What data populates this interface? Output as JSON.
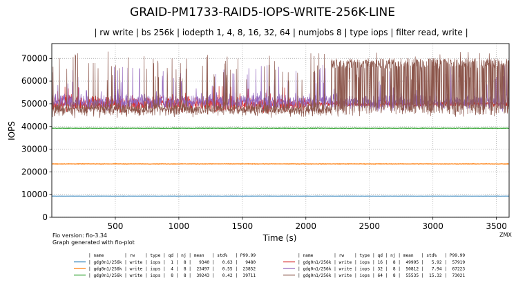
{
  "chart_data": {
    "type": "line",
    "title": "GRAID-PM1733-RAID5-IOPS-WRITE-256K-LINE",
    "subtitle": "| rw write | bs 256k | iodepth 1, 4, 8, 16, 32, 64 | numjobs 8 | type iops | filter read, write |",
    "xlabel": "Time (s)",
    "ylabel": "IOPS",
    "xlim": [
      0,
      3600
    ],
    "ylim": [
      0,
      76500
    ],
    "x_ticks": [
      "500",
      "1000",
      "1500",
      "2000",
      "2500",
      "3000",
      "3500"
    ],
    "y_ticks": [
      "0",
      "10000",
      "20000",
      "30000",
      "40000",
      "50000",
      "60000",
      "70000"
    ],
    "grid": true,
    "corner_label": "ZMX",
    "footer_lines": [
      "Fio version: fio-3.34",
      "Graph generated with fio-plot"
    ],
    "legend_header": "| name        | rw    | type | qd | nj | mean   | std%   | P99.99",
    "series": [
      {
        "name": "gdg0n1/256k",
        "rw": "write",
        "type": "iops",
        "qd": "1",
        "nj": "8",
        "mean": 9340,
        "std_pct": 0.63,
        "p9999": 9480,
        "color": "#1f77b4",
        "legend_text": "| gdg0n1/256k | write | iops |  1 |  8 |   9340 |   0.63 |   9480"
      },
      {
        "name": "gdg0n1/256k",
        "rw": "write",
        "type": "iops",
        "qd": "4",
        "nj": "8",
        "mean": 23497,
        "std_pct": 0.55,
        "p9999": 23852,
        "color": "#ff7f0e",
        "legend_text": "| gdg0n1/256k | write | iops |  4 |  8 |  23497 |   0.55 |  23852"
      },
      {
        "name": "gdg0n1/256k",
        "rw": "write",
        "type": "iops",
        "qd": "8",
        "nj": "8",
        "mean": 39243,
        "std_pct": 0.42,
        "p9999": 39711,
        "color": "#2ca02c",
        "legend_text": "| gdg0n1/256k | write | iops |  8 |  8 |  39243 |   0.42 |  39711"
      },
      {
        "name": "gdg0n1/256k",
        "rw": "write",
        "type": "iops",
        "qd": "16",
        "nj": "8",
        "mean": 49995,
        "std_pct": 5.92,
        "p9999": 57919,
        "color": "#d62728",
        "legend_text": "| gdg0n1/256k | write | iops | 16 |  8 |  49995 |   5.92 |  57919"
      },
      {
        "name": "gdg0n1/256k",
        "rw": "write",
        "type": "iops",
        "qd": "32",
        "nj": "8",
        "mean": 50812,
        "std_pct": 7.94,
        "p9999": 67223,
        "color": "#9467bd",
        "legend_text": "| gdg0n1/256k | write | iops | 32 |  8 |  50812 |   7.94 |  67223"
      },
      {
        "name": "gdg0n1/256k",
        "rw": "write",
        "type": "iops",
        "qd": "64",
        "nj": "8",
        "mean": 55535,
        "std_pct": 15.32,
        "p9999": 73021,
        "color": "#8c564b",
        "legend_text": "| gdg0n1/256k | write | iops | 64 |  8 |  55535 |  15.32 |  73021"
      }
    ]
  }
}
